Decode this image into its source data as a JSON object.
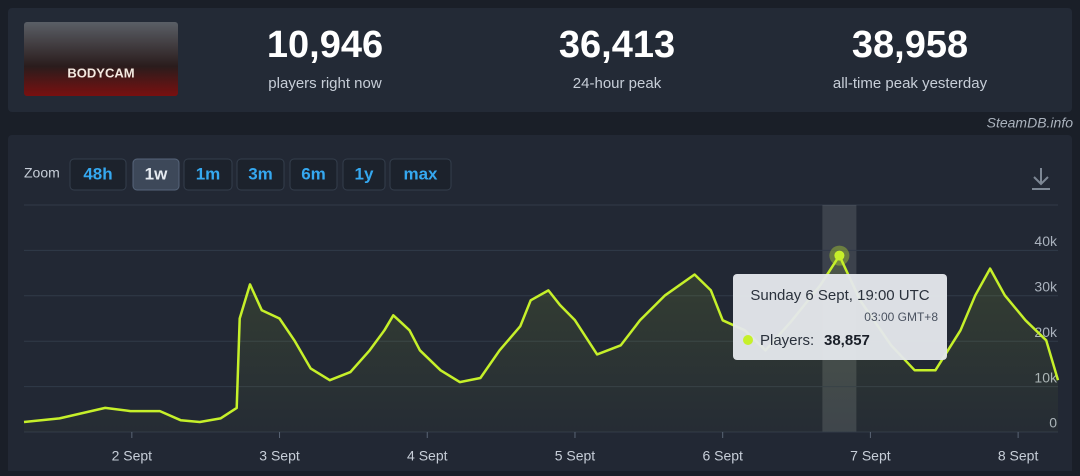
{
  "header": {
    "game_logo": "BODYCAM",
    "stats": [
      {
        "value": "10,946",
        "label": "players right now"
      },
      {
        "value": "36,413",
        "label": "24-hour peak"
      },
      {
        "value": "38,958",
        "label": "all-time peak yesterday"
      }
    ]
  },
  "watermark": "SteamDB.info",
  "zoom": {
    "label": "Zoom",
    "options": [
      "48h",
      "1w",
      "1m",
      "3m",
      "6m",
      "1y",
      "max"
    ],
    "active": "1w"
  },
  "chart_data": {
    "type": "line",
    "x": [
      1.27,
      1.51,
      1.82,
      1.99,
      2.19,
      2.33,
      2.46,
      2.6,
      2.71,
      2.73,
      2.8,
      2.88,
      3.0,
      3.1,
      3.21,
      3.34,
      3.48,
      3.61,
      3.71,
      3.77,
      3.82,
      3.88,
      3.95,
      4.09,
      4.22,
      4.36,
      4.49,
      4.63,
      4.7,
      4.82,
      4.9,
      5.0,
      5.15,
      5.31,
      5.44,
      5.61,
      5.81,
      5.92,
      6.0,
      6.15,
      6.29,
      6.46,
      6.66,
      6.79,
      6.93,
      7.14,
      7.3,
      7.44,
      7.61,
      7.71,
      7.81,
      7.91,
      8.05,
      8.19,
      8.27
    ],
    "series": [
      {
        "color": "#c6f02a",
        "values": [
          2200,
          3000,
          5300,
          4600,
          4600,
          2600,
          2200,
          3000,
          5300,
          25000,
          32500,
          26800,
          25000,
          20200,
          14000,
          11400,
          13200,
          18000,
          22400,
          25700,
          24200,
          22400,
          18000,
          13600,
          11000,
          11900,
          18000,
          23300,
          29000,
          31200,
          27900,
          24600,
          17100,
          19100,
          24600,
          30100,
          34700,
          31200,
          24600,
          22400,
          18000,
          24200,
          32300,
          38857,
          29000,
          19100,
          13600,
          13600,
          22400,
          30100,
          36000,
          30100,
          24600,
          20200,
          11400
        ]
      }
    ],
    "xlim": [
      1.27,
      8.27
    ],
    "xticks": [
      {
        "value": 2,
        "label": "2 Sept"
      },
      {
        "value": 3,
        "label": "3 Sept"
      },
      {
        "value": 4,
        "label": "4 Sept"
      },
      {
        "value": 5,
        "label": "5 Sept"
      },
      {
        "value": 6,
        "label": "6 Sept"
      },
      {
        "value": 7,
        "label": "7 Sept"
      },
      {
        "value": 8,
        "label": "8 Sept"
      }
    ],
    "ylim": [
      0,
      50000
    ],
    "yticks": [
      0,
      {
        "value": 10000,
        "label": "10k"
      },
      {
        "value": 20000,
        "label": "20k"
      },
      {
        "value": 30000,
        "label": "30k"
      },
      {
        "value": 40000,
        "label": "40k"
      }
    ],
    "grid": true,
    "tooltip": {
      "title": "Sunday 6 Sept, 19:00 UTC",
      "subtitle": "03:00 GMT+8",
      "label": "Players:",
      "x": 6.79,
      "value": 38857,
      "value_label": "38,857"
    }
  }
}
